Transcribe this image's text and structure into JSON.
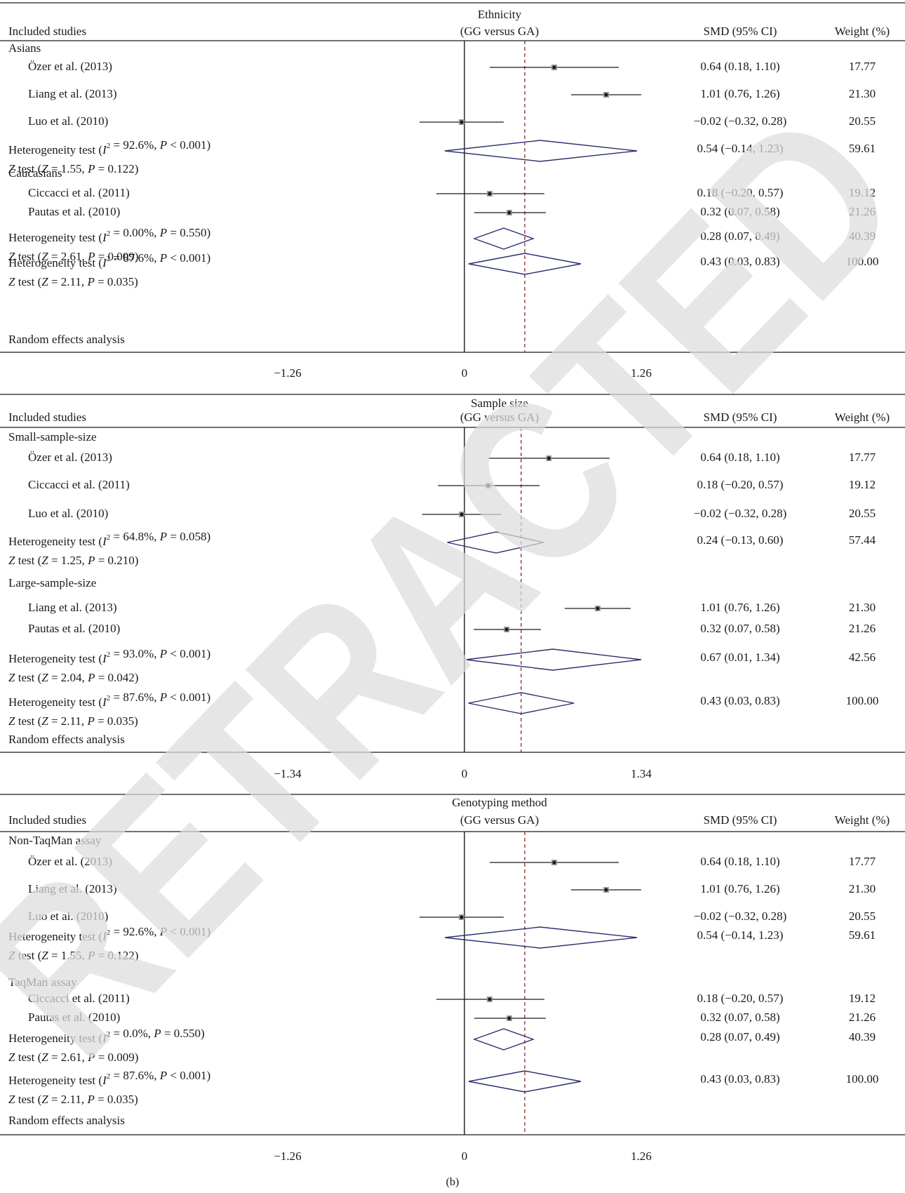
{
  "caption": "(b)",
  "watermark": "RETRACTED",
  "col_headers": {
    "studies": "Included studies",
    "comparison": "(GG versus GA)",
    "smd": "SMD (95% CI)",
    "weight": "Weight (%)"
  },
  "style": {
    "line_color": "#1a1a1a",
    "diamond_color": "#2b2f6e",
    "ref_line_color": "#8b2a2a",
    "watermark_color": "#dcdcdc"
  },
  "chart_data": [
    {
      "type": "forest",
      "title": "Ethnicity",
      "axis": {
        "min": -1.26,
        "max": 1.26,
        "ticks": [
          "-1.26",
          "0",
          "1.26"
        ],
        "tick_labels": [
          "−1.26",
          "0",
          "1.26"
        ]
      },
      "overall_effect": 0.43,
      "footer": "Random effects analysis",
      "rows": [
        {
          "kind": "group",
          "label": "Asians"
        },
        {
          "kind": "study",
          "label": "Özer et al. (2013)",
          "est": 0.64,
          "lo": 0.18,
          "hi": 1.1,
          "ci_text": "0.64 (0.18, 1.10)",
          "weight": "17.77"
        },
        {
          "kind": "study",
          "label": "Liang et al. (2013)",
          "est": 1.01,
          "lo": 0.76,
          "hi": 1.26,
          "ci_text": "1.01 (0.76, 1.26)",
          "weight": "21.30"
        },
        {
          "kind": "study",
          "label": "Luo et al. (2010)",
          "est": -0.02,
          "lo": -0.32,
          "hi": 0.28,
          "ci_text": "−0.02 (−0.32, 0.28)",
          "weight": "20.55"
        },
        {
          "kind": "pooled",
          "label_html": "Heterogeneity test (<tspan font-style='italic'>I</tspan><tspan baseline-shift='super' font-size='11'>2</tspan> = 92.6%, <tspan font-style='italic'>P</tspan> &lt; 0.001)",
          "label": "Heterogeneity test (I2 = 92.6%, P < 0.001)",
          "z_label": "Z test (Z = 1.55, P = 0.122)",
          "est": 0.54,
          "lo": -0.14,
          "hi": 1.23,
          "ci_text": "0.54 (−0.14, 1.23)",
          "weight": "59.61"
        },
        {
          "kind": "group",
          "label": "Caucasians"
        },
        {
          "kind": "study",
          "label": "Ciccacci et al. (2011)",
          "est": 0.18,
          "lo": -0.2,
          "hi": 0.57,
          "ci_text": "0.18 (−0.20, 0.57)",
          "weight": "19.12"
        },
        {
          "kind": "study",
          "label": "Pautas et al. (2010)",
          "est": 0.32,
          "lo": 0.07,
          "hi": 0.58,
          "ci_text": "0.32 (0.07, 0.58)",
          "weight": "21.26"
        },
        {
          "kind": "pooled",
          "label": "Heterogeneity test (I2 = 0.00%, P = 0.550)",
          "z_label": "Z test (Z = 2.61, P = 0.009)",
          "est": 0.28,
          "lo": 0.07,
          "hi": 0.49,
          "ci_text": "0.28 (0.07, 0.49)",
          "weight": "40.39"
        },
        {
          "kind": "pooled",
          "label": "Heterogeneity test (I2 = 87.6%, P < 0.001)",
          "z_label": "Z test (Z = 2.11, P = 0.035)",
          "est": 0.43,
          "lo": 0.03,
          "hi": 0.83,
          "ci_text": "0.43 (0.03, 0.83)",
          "weight": "100.00"
        }
      ]
    },
    {
      "type": "forest",
      "title": "Sample size",
      "axis": {
        "min": -1.34,
        "max": 1.34,
        "ticks": [
          "-1.34",
          "0",
          "1.34"
        ],
        "tick_labels": [
          "−1.34",
          "0",
          "1.34"
        ]
      },
      "overall_effect": 0.43,
      "footer": "Random effects analysis",
      "rows": [
        {
          "kind": "group",
          "label": "Small-sample-size"
        },
        {
          "kind": "study",
          "label": "Özer et al. (2013)",
          "est": 0.64,
          "lo": 0.18,
          "hi": 1.1,
          "ci_text": "0.64 (0.18, 1.10)",
          "weight": "17.77"
        },
        {
          "kind": "study",
          "label": "Ciccacci et al. (2011)",
          "est": 0.18,
          "lo": -0.2,
          "hi": 0.57,
          "ci_text": "0.18 (−0.20, 0.57)",
          "weight": "19.12"
        },
        {
          "kind": "study",
          "label": "Luo et al. (2010)",
          "est": -0.02,
          "lo": -0.32,
          "hi": 0.28,
          "ci_text": "−0.02 (−0.32, 0.28)",
          "weight": "20.55"
        },
        {
          "kind": "pooled",
          "label": "Heterogeneity test (I2 = 64.8%, P = 0.058)",
          "z_label": "Z test (Z = 1.25, P = 0.210)",
          "est": 0.24,
          "lo": -0.13,
          "hi": 0.6,
          "ci_text": "0.24 (−0.13, 0.60)",
          "weight": "57.44"
        },
        {
          "kind": "group",
          "label": "Large-sample-size"
        },
        {
          "kind": "study",
          "label": "Liang et al. (2013)",
          "est": 1.01,
          "lo": 0.76,
          "hi": 1.26,
          "ci_text": "1.01 (0.76, 1.26)",
          "weight": "21.30"
        },
        {
          "kind": "study",
          "label": "Pautas et al. (2010)",
          "est": 0.32,
          "lo": 0.07,
          "hi": 0.58,
          "ci_text": "0.32 (0.07, 0.58)",
          "weight": "21.26"
        },
        {
          "kind": "pooled",
          "label": "Heterogeneity test (I2 = 93.0%, P < 0.001)",
          "z_label": "Z test (Z = 2.04, P = 0.042)",
          "est": 0.67,
          "lo": 0.01,
          "hi": 1.34,
          "ci_text": "0.67 (0.01, 1.34)",
          "weight": "42.56"
        },
        {
          "kind": "pooled",
          "label": "Heterogeneity test (I2 = 87.6%, P < 0.001)",
          "z_label": "Z test (Z = 2.11, P = 0.035)",
          "est": 0.43,
          "lo": 0.03,
          "hi": 0.83,
          "ci_text": "0.43 (0.03, 0.83)",
          "weight": "100.00"
        }
      ]
    },
    {
      "type": "forest",
      "title": "Genotyping method",
      "axis": {
        "min": -1.26,
        "max": 1.26,
        "ticks": [
          "-1.26",
          "0",
          "1.26"
        ],
        "tick_labels": [
          "−1.26",
          "0",
          "1.26"
        ]
      },
      "overall_effect": 0.43,
      "footer": "Random effects analysis",
      "rows": [
        {
          "kind": "group",
          "label": "Non-TaqMan assay"
        },
        {
          "kind": "study",
          "label": "Özer et al. (2013)",
          "est": 0.64,
          "lo": 0.18,
          "hi": 1.1,
          "ci_text": "0.64 (0.18, 1.10)",
          "weight": "17.77"
        },
        {
          "kind": "study",
          "label": "Liang et al. (2013)",
          "est": 1.01,
          "lo": 0.76,
          "hi": 1.26,
          "ci_text": "1.01 (0.76, 1.26)",
          "weight": "21.30"
        },
        {
          "kind": "study",
          "label": "Luo et al. (2010)",
          "est": -0.02,
          "lo": -0.32,
          "hi": 0.28,
          "ci_text": "−0.02 (−0.32, 0.28)",
          "weight": "20.55"
        },
        {
          "kind": "pooled",
          "label": "Heterogeneity test (I2 = 92.6%, P < 0.001)",
          "z_label": "Z test (Z = 1.55, P = 0.122)",
          "est": 0.54,
          "lo": -0.14,
          "hi": 1.23,
          "ci_text": "0.54 (−0.14, 1.23)",
          "weight": "59.61"
        },
        {
          "kind": "group",
          "label": "TaqMan assay"
        },
        {
          "kind": "study",
          "label": "Ciccacci et al. (2011)",
          "est": 0.18,
          "lo": -0.2,
          "hi": 0.57,
          "ci_text": "0.18 (−0.20, 0.57)",
          "weight": "19.12"
        },
        {
          "kind": "study",
          "label": "Pautas et al. (2010)",
          "est": 0.32,
          "lo": 0.07,
          "hi": 0.58,
          "ci_text": "0.32 (0.07, 0.58)",
          "weight": "21.26"
        },
        {
          "kind": "pooled",
          "label": "Heterogeneity test (I2 = 0.0%, P = 0.550)",
          "z_label": "Z test (Z = 2.61, P = 0.009)",
          "est": 0.28,
          "lo": 0.07,
          "hi": 0.49,
          "ci_text": "0.28 (0.07, 0.49)",
          "weight": "40.39"
        },
        {
          "kind": "pooled",
          "label": "Heterogeneity test (I2 = 87.6%, P < 0.001)",
          "z_label": "Z test (Z = 2.11, P = 0.035)",
          "est": 0.43,
          "lo": 0.03,
          "hi": 0.83,
          "ci_text": "0.43 (0.03, 0.83)",
          "weight": "100.00"
        }
      ]
    }
  ]
}
